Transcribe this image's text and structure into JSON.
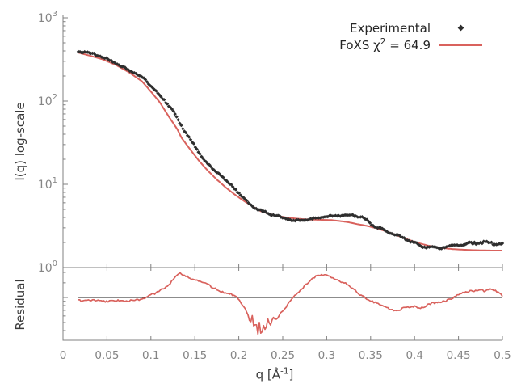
{
  "colors": {
    "fit_line": "#d9625d",
    "experimental": "#2e2e2e",
    "axis": "#808080",
    "tick_label": "#858585",
    "axis_title": "#3a3a3a",
    "reference_line": "#1a1a1a",
    "background": "#ffffff"
  },
  "legend": {
    "entries": [
      {
        "label": "Experimental",
        "marker": "diamond"
      },
      {
        "label_pre": "FoXS χ",
        "label_sup": "2",
        "label_post": " = 64.9",
        "marker": "line"
      }
    ],
    "chi_squared": "64.9"
  },
  "axes": {
    "x": {
      "label_pre": "q [Å",
      "label_sup": "-1",
      "label_post": "]",
      "tick_values": [
        0,
        0.05,
        0.1,
        0.15,
        0.2,
        0.25,
        0.3,
        0.35,
        0.4,
        0.45,
        0.5
      ],
      "tick_labels": [
        "0",
        "0.05",
        "0.1",
        "0.15",
        "0.2",
        "0.25",
        "0.3",
        "0.35",
        "0.4",
        "0.45",
        "0.5"
      ]
    },
    "y_main": {
      "label": "I(q) log-scale",
      "scale": "log",
      "tick_exponents": [
        0,
        1,
        2,
        3
      ]
    },
    "y_residual": {
      "label": "Residual",
      "scale": "log",
      "minor_tick_values": [
        2,
        1.5,
        1,
        0.9,
        0.8,
        0.7,
        0.6,
        0.5,
        0.4
      ]
    }
  },
  "chart_data": [
    {
      "type": "scatter",
      "panel": "main",
      "xlabel": "q [Å^-1]",
      "ylabel": "I(q) log-scale",
      "xscale": "linear",
      "yscale": "log",
      "xlim": [
        0,
        0.5
      ],
      "ylim": [
        1,
        1000
      ],
      "legend_position": "top-right",
      "grid": false,
      "series": [
        {
          "name": "Experimental",
          "style": "points",
          "marker": "diamond",
          "color": "#2e2e2e",
          "points": [
            [
              0.0175,
              400
            ],
            [
              0.025,
              392
            ],
            [
              0.035,
              368
            ],
            [
              0.045,
              330
            ],
            [
              0.055,
              300
            ],
            [
              0.065,
              268
            ],
            [
              0.075,
              238
            ],
            [
              0.085,
              205
            ],
            [
              0.09,
              190
            ],
            [
              0.095,
              172
            ],
            [
              0.1,
              150
            ],
            [
              0.105,
              133
            ],
            [
              0.11,
              118
            ],
            [
              0.115,
              104
            ],
            [
              0.12,
              91
            ],
            [
              0.125,
              77
            ],
            [
              0.13,
              62
            ],
            [
              0.135,
              49
            ],
            [
              0.14,
              41
            ],
            [
              0.145,
              34
            ],
            [
              0.15,
              28.5
            ],
            [
              0.155,
              24
            ],
            [
              0.16,
              20.2
            ],
            [
              0.17,
              15.6
            ],
            [
              0.177,
              13.8
            ],
            [
              0.185,
              11
            ],
            [
              0.195,
              8.9
            ],
            [
              0.205,
              6.9
            ],
            [
              0.213,
              5.8
            ],
            [
              0.222,
              5
            ],
            [
              0.23,
              4.6
            ],
            [
              0.24,
              4.2
            ],
            [
              0.25,
              3.95
            ],
            [
              0.26,
              3.75
            ],
            [
              0.268,
              3.7
            ],
            [
              0.278,
              3.75
            ],
            [
              0.288,
              3.85
            ],
            [
              0.298,
              4.05
            ],
            [
              0.308,
              4.2
            ],
            [
              0.318,
              4.26
            ],
            [
              0.325,
              4.28
            ],
            [
              0.333,
              4.15
            ],
            [
              0.342,
              3.9
            ],
            [
              0.352,
              3.3
            ],
            [
              0.36,
              3.0
            ],
            [
              0.37,
              2.72
            ],
            [
              0.38,
              2.42
            ],
            [
              0.39,
              2.18
            ],
            [
              0.4,
              1.97
            ],
            [
              0.41,
              1.83
            ],
            [
              0.42,
              1.73
            ],
            [
              0.43,
              1.7
            ],
            [
              0.44,
              1.78
            ],
            [
              0.45,
              1.88
            ],
            [
              0.46,
              1.95
            ],
            [
              0.468,
              1.99
            ],
            [
              0.476,
              1.94
            ],
            [
              0.485,
              1.96
            ],
            [
              0.493,
              1.93
            ],
            [
              0.5,
              1.96
            ]
          ]
        },
        {
          "name": "FoXS χ2 = 64.9",
          "style": "line",
          "color": "#d9625d",
          "points": [
            [
              0.0175,
              381
            ],
            [
              0.03,
              352
            ],
            [
              0.045,
              317
            ],
            [
              0.06,
              272
            ],
            [
              0.075,
              222
            ],
            [
              0.09,
              172
            ],
            [
              0.1,
              130
            ],
            [
              0.11,
              97
            ],
            [
              0.12,
              66
            ],
            [
              0.13,
              46
            ],
            [
              0.135,
              36
            ],
            [
              0.145,
              26
            ],
            [
              0.155,
              19
            ],
            [
              0.165,
              14.5
            ],
            [
              0.175,
              11.4
            ],
            [
              0.185,
              9.2
            ],
            [
              0.195,
              7.6
            ],
            [
              0.205,
              6.4
            ],
            [
              0.215,
              5.5
            ],
            [
              0.225,
              4.75
            ],
            [
              0.235,
              4.4
            ],
            [
              0.245,
              4.15
            ],
            [
              0.255,
              3.98
            ],
            [
              0.265,
              3.88
            ],
            [
              0.275,
              3.8
            ],
            [
              0.285,
              3.76
            ],
            [
              0.295,
              3.74
            ],
            [
              0.305,
              3.72
            ],
            [
              0.315,
              3.62
            ],
            [
              0.325,
              3.5
            ],
            [
              0.335,
              3.32
            ],
            [
              0.345,
              3.18
            ],
            [
              0.355,
              3.0
            ],
            [
              0.365,
              2.78
            ],
            [
              0.375,
              2.55
            ],
            [
              0.385,
              2.32
            ],
            [
              0.395,
              2.12
            ],
            [
              0.405,
              1.96
            ],
            [
              0.415,
              1.84
            ],
            [
              0.425,
              1.76
            ],
            [
              0.435,
              1.7
            ],
            [
              0.445,
              1.66
            ],
            [
              0.455,
              1.64
            ],
            [
              0.465,
              1.62
            ],
            [
              0.475,
              1.61
            ],
            [
              0.487,
              1.6
            ],
            [
              0.5,
              1.6
            ]
          ]
        }
      ]
    },
    {
      "type": "line",
      "panel": "residual",
      "ylabel": "Residual",
      "yscale": "log",
      "xlim": [
        0,
        0.5
      ],
      "ylim": [
        0.306,
        2.29
      ],
      "reference_line": 1.0,
      "grid": false,
      "series": [
        {
          "name": "Residual",
          "style": "line",
          "color": "#d9625d",
          "points": [
            [
              0.0175,
              0.93
            ],
            [
              0.03,
              0.91
            ],
            [
              0.045,
              0.92
            ],
            [
              0.06,
              0.9
            ],
            [
              0.075,
              0.92
            ],
            [
              0.09,
              0.95
            ],
            [
              0.1,
              1.06
            ],
            [
              0.105,
              1.12
            ],
            [
              0.11,
              1.22
            ],
            [
              0.115,
              1.32
            ],
            [
              0.12,
              1.42
            ],
            [
              0.125,
              1.6
            ],
            [
              0.129,
              1.85
            ],
            [
              0.133,
              1.97
            ],
            [
              0.137,
              1.88
            ],
            [
              0.141,
              1.8
            ],
            [
              0.145,
              1.7
            ],
            [
              0.151,
              1.67
            ],
            [
              0.156,
              1.55
            ],
            [
              0.16,
              1.5
            ],
            [
              0.166,
              1.38
            ],
            [
              0.172,
              1.3
            ],
            [
              0.178,
              1.22
            ],
            [
              0.184,
              1.16
            ],
            [
              0.19,
              1.1
            ],
            [
              0.196,
              1.03
            ],
            [
              0.202,
              0.88
            ],
            [
              0.207,
              0.76
            ],
            [
              0.21,
              0.66
            ],
            [
              0.213,
              0.5
            ],
            [
              0.2155,
              0.62
            ],
            [
              0.2175,
              0.4
            ],
            [
              0.2195,
              0.55
            ],
            [
              0.2215,
              0.35
            ],
            [
              0.2235,
              0.5
            ],
            [
              0.2255,
              0.33
            ],
            [
              0.228,
              0.46
            ],
            [
              0.2305,
              0.38
            ],
            [
              0.233,
              0.55
            ],
            [
              0.236,
              0.45
            ],
            [
              0.239,
              0.58
            ],
            [
              0.242,
              0.53
            ],
            [
              0.246,
              0.63
            ],
            [
              0.25,
              0.68
            ],
            [
              0.2545,
              0.78
            ],
            [
              0.259,
              0.92
            ],
            [
              0.2635,
              1.05
            ],
            [
              0.268,
              1.15
            ],
            [
              0.2745,
              1.38
            ],
            [
              0.281,
              1.62
            ],
            [
              0.2875,
              1.78
            ],
            [
              0.294,
              1.85
            ],
            [
              0.2985,
              1.87
            ],
            [
              0.304,
              1.8
            ],
            [
              0.309,
              1.73
            ],
            [
              0.315,
              1.58
            ],
            [
              0.321,
              1.47
            ],
            [
              0.327,
              1.33
            ],
            [
              0.3335,
              1.18
            ],
            [
              0.34,
              1.06
            ],
            [
              0.3465,
              0.97
            ],
            [
              0.353,
              0.88
            ],
            [
              0.36,
              0.82
            ],
            [
              0.367,
              0.78
            ],
            [
              0.3735,
              0.72
            ],
            [
              0.38,
              0.7
            ],
            [
              0.3865,
              0.73
            ],
            [
              0.393,
              0.76
            ],
            [
              0.4,
              0.79
            ],
            [
              0.4065,
              0.76
            ],
            [
              0.413,
              0.8
            ],
            [
              0.42,
              0.84
            ],
            [
              0.4265,
              0.86
            ],
            [
              0.433,
              0.9
            ],
            [
              0.44,
              0.96
            ],
            [
              0.4465,
              1.03
            ],
            [
              0.453,
              1.1
            ],
            [
              0.46,
              1.16
            ],
            [
              0.4665,
              1.21
            ],
            [
              0.473,
              1.25
            ],
            [
              0.48,
              1.2
            ],
            [
              0.4865,
              1.24
            ],
            [
              0.493,
              1.18
            ],
            [
              0.5,
              1.06
            ]
          ]
        }
      ]
    }
  ]
}
